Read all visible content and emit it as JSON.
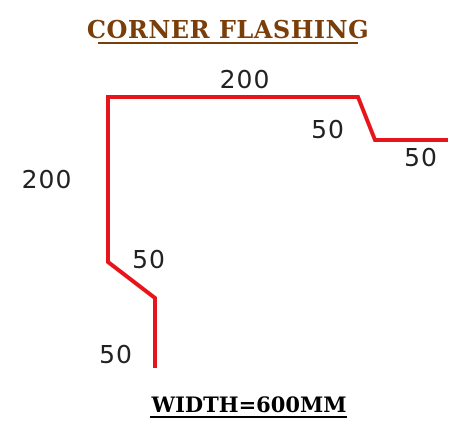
{
  "title": "CORNER FLASHING",
  "footer": "WIDTH=600MM",
  "colors": {
    "profile_line": "#e8141b",
    "title_text": "#7a3e0a",
    "dimension_text": "#222222"
  },
  "dimensions": {
    "top_segment": "200",
    "right_drop": "50",
    "right_return": "50",
    "left_vertical": "200",
    "lower_diagonal": "50",
    "bottom_leg": "50"
  }
}
